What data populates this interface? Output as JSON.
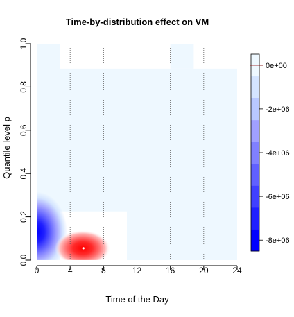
{
  "chart_data": {
    "type": "heatmap",
    "title": "Time-by-distribution effect on VM",
    "xlabel": "Time of the Day",
    "ylabel": "Quantile level p",
    "xlim": [
      0,
      24
    ],
    "ylim": [
      0,
      1
    ],
    "x_ticks": [
      "0",
      "4",
      "8",
      "12",
      "16",
      "20",
      "24"
    ],
    "y_ticks": [
      "0.0",
      "0.2",
      "0.4",
      "0.6",
      "0.8",
      "1.0"
    ],
    "vertical_dotted_lines_x": [
      4,
      8,
      12,
      16,
      20
    ],
    "colorbar": {
      "range": [
        -8500000,
        500000
      ],
      "ticks": [
        "0e+00",
        "-2e+06",
        "-4e+06",
        "-6e+06",
        "-8e+06"
      ],
      "tick_values": [
        0,
        -2000000,
        -4000000,
        -6000000,
        -8000000
      ],
      "zero_marker_color": "#8b0000",
      "levels": [
        {
          "from": -8500000,
          "to": -7500000,
          "color": "#0000ff"
        },
        {
          "from": -7500000,
          "to": -6500000,
          "color": "#2020ff"
        },
        {
          "from": -6500000,
          "to": -5500000,
          "color": "#4040ff"
        },
        {
          "from": -5500000,
          "to": -4500000,
          "color": "#6060ff"
        },
        {
          "from": -4500000,
          "to": -3500000,
          "color": "#8080ff"
        },
        {
          "from": -3500000,
          "to": -2500000,
          "color": "#a0a0ff"
        },
        {
          "from": -2500000,
          "to": -1500000,
          "color": "#b8c8ff"
        },
        {
          "from": -1500000,
          "to": -500000,
          "color": "#d4e4ff"
        },
        {
          "from": -500000,
          "to": 500000,
          "color": "#eef8ff"
        }
      ]
    },
    "regions": [
      {
        "label": "background",
        "value_level": "-5e+05 to 5e+05",
        "color": "#eef8ff"
      },
      {
        "label": "upper plateau",
        "x": [
          2.8,
          24
        ],
        "y": [
          0.885,
          1.0
        ],
        "color": "#ffffff"
      },
      {
        "label": "upper plateau gap",
        "x": [
          16,
          18.8
        ],
        "y": [
          0.885,
          1.0
        ],
        "color": "#eef8ff"
      },
      {
        "label": "lower plateau",
        "x": [
          2.8,
          10.8
        ],
        "y": [
          0.0,
          0.225
        ],
        "color": "#ffffff"
      }
    ],
    "hotspots": [
      {
        "label": "negative effect",
        "x": 0,
        "y": 0.13,
        "min_value": -8000000,
        "color": "#0000ff"
      },
      {
        "label": "positive effect",
        "x": 5.5,
        "y": 0.055,
        "color": "#ff0000"
      }
    ]
  }
}
